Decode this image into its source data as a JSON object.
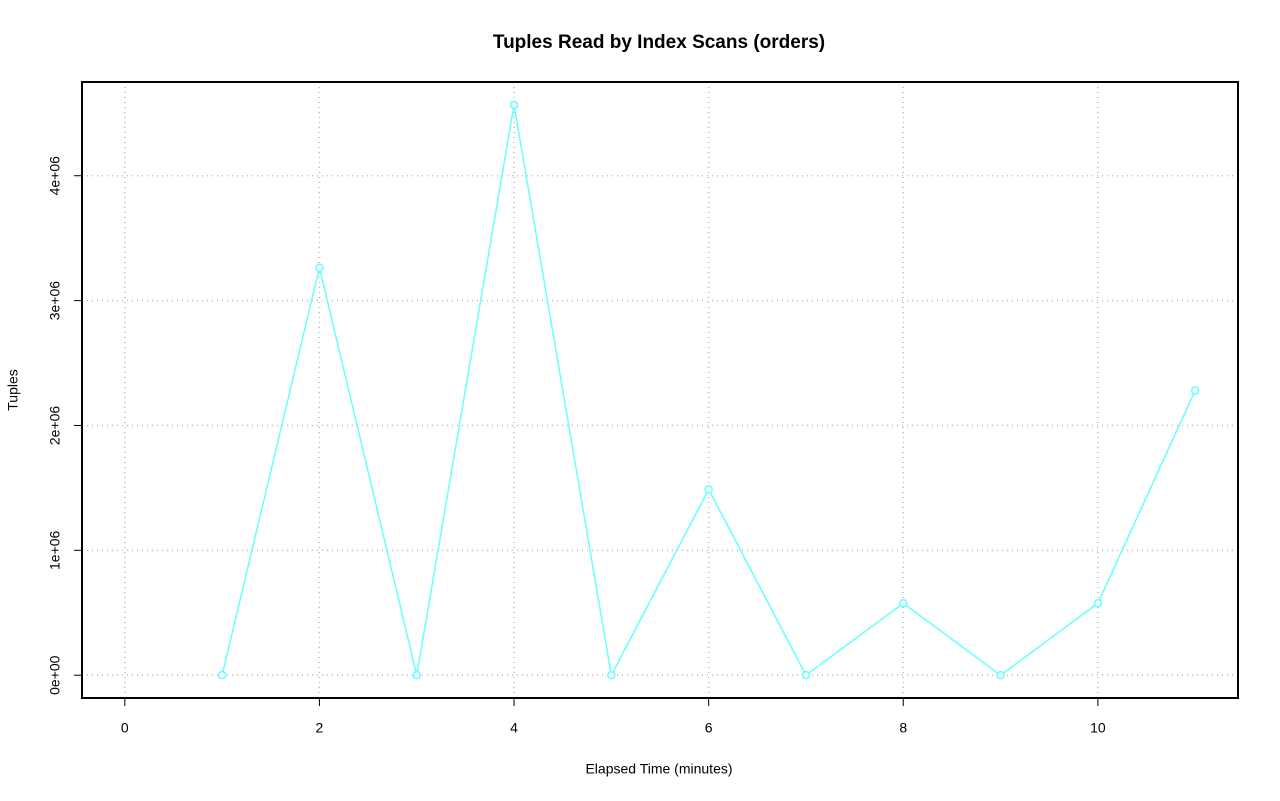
{
  "chart_data": {
    "type": "line",
    "title": "Tuples Read by Index Scans (orders)",
    "x_label": "Elapsed Time (minutes)",
    "y_label": "Tuples",
    "series": [
      {
        "name": "orders",
        "color": "#66ffff",
        "x": [
          1,
          2,
          3,
          4,
          5,
          6,
          7,
          8,
          9,
          10,
          11
        ],
        "values": [
          0,
          3264000,
          0,
          4568000,
          0,
          1488000,
          0,
          576000,
          0,
          576000,
          2280000
        ]
      }
    ],
    "xlim": [
      -0.44,
      11.44
    ],
    "xticks": [
      0,
      2,
      4,
      6,
      8,
      10
    ],
    "ylim": [
      -182720,
      4750720
    ],
    "yticks": [
      {
        "value": 0,
        "label": "0e+00"
      },
      {
        "value": 1000000,
        "label": "1e+06"
      },
      {
        "value": 2000000,
        "label": "2e+06"
      },
      {
        "value": 3000000,
        "label": "3e+06"
      },
      {
        "value": 4000000,
        "label": "4e+06"
      }
    ],
    "grid": true
  }
}
